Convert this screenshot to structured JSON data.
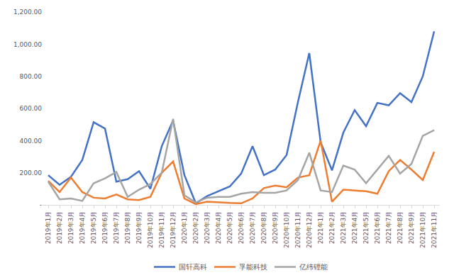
{
  "chart_data": {
    "type": "line",
    "categories": [
      "2019年1月",
      "2019年2月",
      "2019年3月",
      "2019年4月",
      "2019年5月",
      "2019年6月",
      "2019年7月",
      "2019年8月",
      "2019年9月",
      "2019年10月",
      "2019年11月",
      "2019年12月",
      "2020年1月",
      "2020年2月",
      "2020年3月",
      "2020年4月",
      "2020年5月",
      "2020年6月",
      "2020年7月",
      "2020年8月",
      "2020年9月",
      "2020年10月",
      "2020年11月",
      "2020年12月",
      "2021年1月",
      "2021年2月",
      "2021年3月",
      "2021年4月",
      "2021年5月",
      "2021年6月",
      "2021年7月",
      "2021年8月",
      "2021年9月",
      "2021年10月",
      "2021年11月"
    ],
    "series": [
      {
        "name": "国轩高科",
        "color": "#4472c4",
        "values": [
          185,
          125,
          175,
          280,
          515,
          475,
          145,
          160,
          210,
          100,
          365,
          525,
          185,
          10,
          55,
          85,
          115,
          195,
          365,
          185,
          220,
          310,
          640,
          945,
          390,
          215,
          450,
          590,
          490,
          635,
          620,
          695,
          640,
          800,
          1080
        ]
      },
      {
        "name": "孚能科技",
        "color": "#ed7d31",
        "values": [
          150,
          80,
          170,
          80,
          45,
          40,
          65,
          35,
          30,
          50,
          200,
          270,
          40,
          5,
          20,
          15,
          12,
          10,
          40,
          105,
          120,
          110,
          170,
          185,
          400,
          20,
          95,
          90,
          85,
          70,
          210,
          280,
          220,
          155,
          330
        ]
      },
      {
        "name": "亿纬锂能",
        "color": "#a5a5a5",
        "values": [
          145,
          35,
          40,
          25,
          135,
          165,
          205,
          50,
          95,
          130,
          200,
          535,
          60,
          15,
          45,
          50,
          50,
          70,
          80,
          75,
          75,
          90,
          155,
          325,
          90,
          80,
          245,
          220,
          135,
          220,
          305,
          195,
          255,
          430,
          465
        ]
      }
    ],
    "ylim": [
      0,
      1200
    ],
    "yticks": [
      {
        "value": 0,
        "label": "-"
      },
      {
        "value": 200,
        "label": "200.00"
      },
      {
        "value": 400,
        "label": "400.00"
      },
      {
        "value": 600,
        "label": "600.00"
      },
      {
        "value": 800,
        "label": "800.00"
      },
      {
        "value": 1000,
        "label": "1,000.00"
      },
      {
        "value": 1200,
        "label": "1,200.00"
      }
    ],
    "grid": false,
    "legend": "bottom"
  }
}
